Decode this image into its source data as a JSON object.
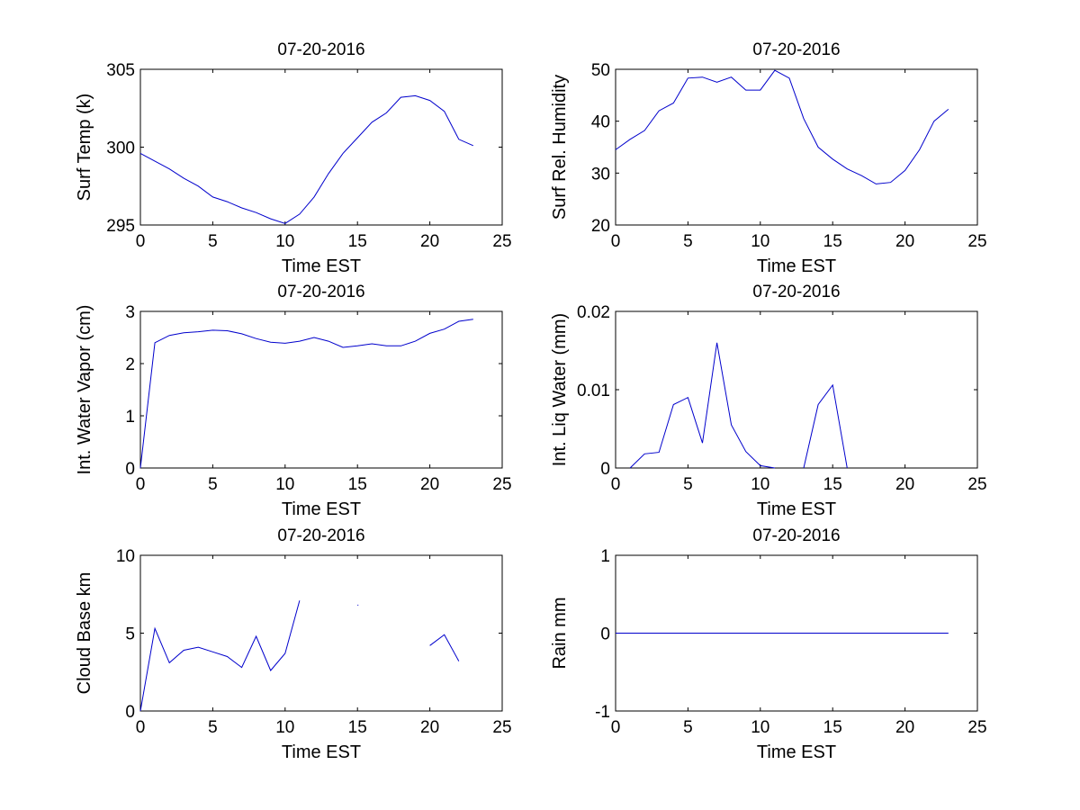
{
  "series_color": "#0000cc",
  "chart_data": [
    {
      "type": "line",
      "title": "07-20-2016",
      "xlabel": "Time EST",
      "ylabel": "Surf Temp (k)",
      "xlim": [
        0,
        25
      ],
      "ylim": [
        295,
        305
      ],
      "xticks": [
        0,
        5,
        10,
        15,
        20,
        25
      ],
      "yticks": [
        295,
        300,
        305
      ],
      "x": [
        0,
        1,
        2,
        3,
        4,
        5,
        6,
        7,
        8,
        9,
        10,
        11,
        12,
        13,
        14,
        15,
        16,
        17,
        18,
        19,
        20,
        21,
        22,
        23
      ],
      "y": [
        299.6,
        299.1,
        298.6,
        298.0,
        297.5,
        296.8,
        296.5,
        296.1,
        295.8,
        295.4,
        295.1,
        295.7,
        296.8,
        298.3,
        299.6,
        300.6,
        301.6,
        302.2,
        303.2,
        303.3,
        303.0,
        302.3,
        300.5,
        300.1
      ]
    },
    {
      "type": "line",
      "title": "07-20-2016",
      "xlabel": "Time EST",
      "ylabel": "Surf Rel. Humidity",
      "xlim": [
        0,
        25
      ],
      "ylim": [
        20,
        50
      ],
      "xticks": [
        0,
        5,
        10,
        15,
        20,
        25
      ],
      "yticks": [
        20,
        30,
        40,
        50
      ],
      "x": [
        0,
        1,
        2,
        3,
        4,
        5,
        6,
        7,
        8,
        9,
        10,
        11,
        12,
        13,
        14,
        15,
        16,
        17,
        18,
        19,
        20,
        21,
        22,
        23
      ],
      "y": [
        34.5,
        36.5,
        38.2,
        42.0,
        43.5,
        48.3,
        48.5,
        47.5,
        48.5,
        46.0,
        46.0,
        49.8,
        48.3,
        40.5,
        35.0,
        32.7,
        30.8,
        29.5,
        27.9,
        28.2,
        30.5,
        34.5,
        40.0,
        42.3
      ]
    },
    {
      "type": "line",
      "title": "07-20-2016",
      "xlabel": "Time EST",
      "ylabel": "Int. Water Vapor (cm)",
      "xlim": [
        0,
        25
      ],
      "ylim": [
        0,
        3
      ],
      "xticks": [
        0,
        5,
        10,
        15,
        20,
        25
      ],
      "yticks": [
        0,
        1,
        2,
        3
      ],
      "x": [
        0,
        1,
        2,
        3,
        4,
        5,
        6,
        7,
        8,
        9,
        10,
        11,
        12,
        13,
        14,
        15,
        16,
        17,
        18,
        19,
        20,
        21,
        22,
        23
      ],
      "y": [
        0.0,
        2.4,
        2.54,
        2.59,
        2.61,
        2.64,
        2.63,
        2.57,
        2.48,
        2.41,
        2.39,
        2.43,
        2.5,
        2.43,
        2.31,
        2.34,
        2.38,
        2.34,
        2.34,
        2.43,
        2.58,
        2.66,
        2.81,
        2.85
      ]
    },
    {
      "type": "line",
      "title": "07-20-2016",
      "xlabel": "Time EST",
      "ylabel": "Int. Liq Water (mm)",
      "xlim": [
        0,
        25
      ],
      "ylim": [
        0,
        0.02
      ],
      "xticks": [
        0,
        5,
        10,
        15,
        20,
        25
      ],
      "yticks": [
        0,
        0.01,
        0.02
      ],
      "x": [
        0,
        1,
        2,
        3,
        4,
        5,
        6,
        7,
        8,
        9,
        10,
        11,
        12,
        13,
        14,
        15,
        16,
        17,
        18,
        19,
        20,
        21,
        22,
        23
      ],
      "y": [
        null,
        0.0,
        0.0018,
        0.002,
        0.0081,
        0.009,
        0.0032,
        0.016,
        0.0055,
        0.0021,
        0.0003,
        0.0,
        null,
        0.0,
        0.0081,
        0.0106,
        0.0,
        null,
        null,
        null,
        null,
        null,
        null,
        null
      ]
    },
    {
      "type": "line",
      "title": "07-20-2016",
      "xlabel": "Time EST",
      "ylabel": "Cloud Base km",
      "xlim": [
        0,
        25
      ],
      "ylim": [
        0,
        10
      ],
      "xticks": [
        0,
        5,
        10,
        15,
        20,
        25
      ],
      "yticks": [
        0,
        5,
        10
      ],
      "x": [
        0,
        1,
        2,
        3,
        4,
        5,
        6,
        7,
        8,
        9,
        10,
        11,
        12,
        13,
        14,
        15,
        16,
        17,
        18,
        19,
        20,
        21,
        22,
        23
      ],
      "y": [
        0.0,
        5.3,
        3.1,
        3.9,
        4.1,
        3.8,
        3.5,
        2.8,
        4.8,
        2.6,
        3.7,
        7.1,
        null,
        null,
        null,
        6.8,
        null,
        null,
        null,
        null,
        4.2,
        4.9,
        3.2,
        null
      ]
    },
    {
      "type": "line",
      "title": "07-20-2016",
      "xlabel": "Time EST",
      "ylabel": "Rain mm",
      "xlim": [
        0,
        25
      ],
      "ylim": [
        -1,
        1
      ],
      "xticks": [
        0,
        5,
        10,
        15,
        20,
        25
      ],
      "yticks": [
        -1,
        0,
        1
      ],
      "x": [
        0,
        1,
        2,
        3,
        4,
        5,
        6,
        7,
        8,
        9,
        10,
        11,
        12,
        13,
        14,
        15,
        16,
        17,
        18,
        19,
        20,
        21,
        22,
        23
      ],
      "y": [
        0,
        0,
        0,
        0,
        0,
        0,
        0,
        0,
        0,
        0,
        0,
        0,
        0,
        0,
        0,
        0,
        0,
        0,
        0,
        0,
        0,
        0,
        0,
        0
      ]
    }
  ]
}
